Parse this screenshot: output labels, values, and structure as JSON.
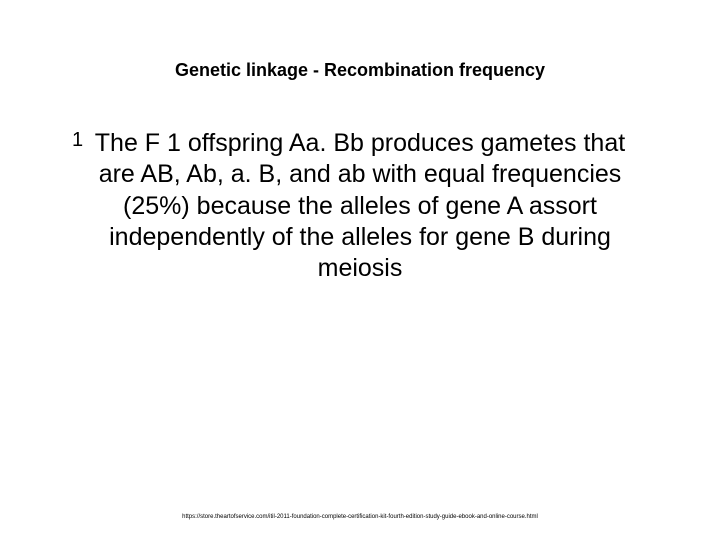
{
  "slide": {
    "title": "Genetic linkage - Recombination frequency",
    "title_fontsize": 18,
    "title_color": "#000000",
    "body_text": "The F 1 offspring Aa. Bb produces gametes that are AB, Ab, a. B, and ab with equal frequencies (25%) because the alleles of gene A assort independently of the alleles for gene B during meiosis",
    "body_fontsize": 25,
    "body_color": "#000000",
    "bullet_marker": "1",
    "footer_url": "https://store.theartofservice.com/itil-2011-foundation-complete-certification-kit-fourth-edition-study-guide-ebook-and-online-course.html",
    "footer_fontsize": 6,
    "footer_color": "#000000",
    "background_color": "#ffffff"
  }
}
